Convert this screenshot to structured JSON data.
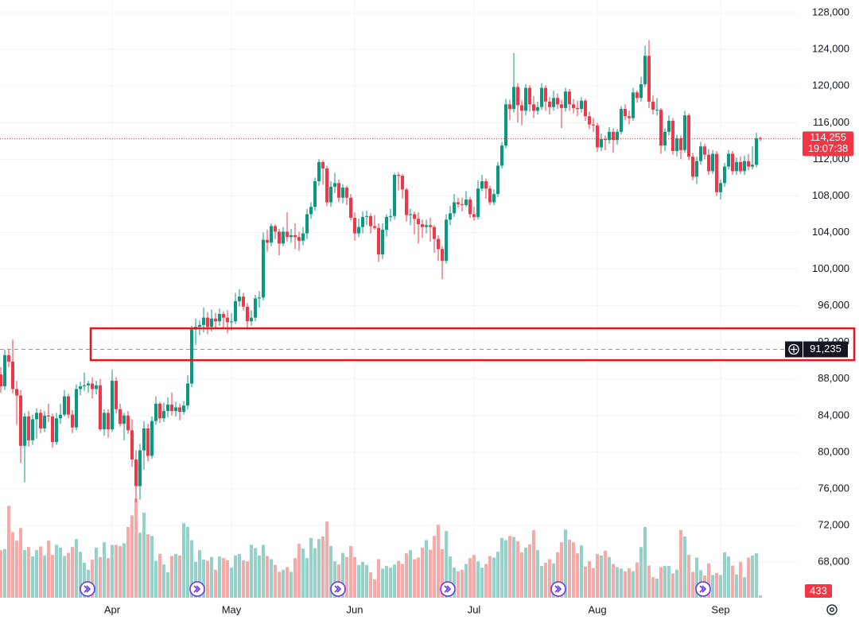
{
  "chart_data": {
    "type": "candlestick",
    "up_color": "#089981",
    "down_color": "#f23645",
    "up_volume_color": "#92d2c8",
    "down_volume_color": "#f7a9a7",
    "ylim": [
      64100,
      129400
    ],
    "yticks": [
      {
        "value": 68000,
        "label": "68,000"
      },
      {
        "value": 72000,
        "label": "72,000"
      },
      {
        "value": 76000,
        "label": "76,000"
      },
      {
        "value": 80000,
        "label": "80,000"
      },
      {
        "value": 84000,
        "label": "84,000"
      },
      {
        "value": 88000,
        "label": "88,000"
      },
      {
        "value": 92000,
        "label": "92,000"
      },
      {
        "value": 96000,
        "label": "96,000"
      },
      {
        "value": 100000,
        "label": "100,000"
      },
      {
        "value": 104000,
        "label": "104,000"
      },
      {
        "value": 108000,
        "label": "108,000"
      },
      {
        "value": 112000,
        "label": "112,000"
      },
      {
        "value": 116000,
        "label": "116,000"
      },
      {
        "value": 120000,
        "label": "120,000"
      },
      {
        "value": 124000,
        "label": "124,000"
      },
      {
        "value": 128000,
        "label": "128,000"
      }
    ],
    "xticks": [
      {
        "value": 28,
        "label": "Apr"
      },
      {
        "value": 58,
        "label": "May"
      },
      {
        "value": 89,
        "label": "Jun"
      },
      {
        "value": 119,
        "label": "Jul"
      },
      {
        "value": 150,
        "label": "Aug"
      },
      {
        "value": 181,
        "label": "Sep"
      }
    ],
    "grid": true,
    "last_price": {
      "value": 114255,
      "label": "114,255"
    },
    "countdown": "19:07:38",
    "crosshair": {
      "value": 91235,
      "label": "91,235"
    },
    "highlight_range": [
      90050,
      93530
    ],
    "candles": [
      [
        88500,
        89300,
        86500,
        87200
      ],
      [
        87200,
        91200,
        86800,
        90600
      ],
      [
        90600,
        91300,
        89300,
        89900
      ],
      [
        89900,
        92300,
        86400,
        86900
      ],
      [
        86900,
        87800,
        83000,
        86200
      ],
      [
        86200,
        86800,
        78800,
        80700
      ],
      [
        80700,
        84300,
        76700,
        83900
      ],
      [
        83900,
        84500,
        80600,
        81300
      ],
      [
        81300,
        84100,
        80800,
        83600
      ],
      [
        83600,
        84800,
        81500,
        84300
      ],
      [
        84300,
        84700,
        82100,
        82600
      ],
      [
        82600,
        84500,
        82200,
        84000
      ],
      [
        84000,
        85300,
        83300,
        83900
      ],
      [
        83900,
        84200,
        80500,
        81100
      ],
      [
        81100,
        84300,
        80800,
        83700
      ],
      [
        83700,
        85300,
        83100,
        84100
      ],
      [
        84100,
        86800,
        83900,
        86100
      ],
      [
        86100,
        86400,
        83700,
        84100
      ],
      [
        84100,
        84600,
        82100,
        82700
      ],
      [
        82700,
        87400,
        82400,
        86900
      ],
      [
        86900,
        87700,
        86200,
        87200
      ],
      [
        87200,
        88700,
        86700,
        87300
      ],
      [
        87300,
        87800,
        86500,
        87500
      ],
      [
        87500,
        88200,
        85900,
        86900
      ],
      [
        86900,
        87800,
        86300,
        87300
      ],
      [
        87300,
        88000,
        82300,
        82500
      ],
      [
        82500,
        84700,
        81800,
        84300
      ],
      [
        84300,
        84700,
        81600,
        82500
      ],
      [
        82500,
        89000,
        82200,
        87800
      ],
      [
        87800,
        88200,
        84200,
        84700
      ],
      [
        84700,
        85300,
        82800,
        83100
      ],
      [
        83100,
        84300,
        81300,
        84000
      ],
      [
        84000,
        84500,
        82000,
        82400
      ],
      [
        82400,
        83600,
        78400,
        79200
      ],
      [
        79200,
        80200,
        74500,
        76300
      ],
      [
        76300,
        80900,
        74800,
        80200
      ],
      [
        80200,
        83400,
        78100,
        82600
      ],
      [
        82600,
        83100,
        79000,
        79600
      ],
      [
        79600,
        83900,
        79300,
        83400
      ],
      [
        83400,
        86100,
        83000,
        85300
      ],
      [
        85300,
        85500,
        83200,
        83700
      ],
      [
        83700,
        85400,
        83300,
        84500
      ],
      [
        84500,
        86000,
        83800,
        85200
      ],
      [
        85200,
        86500,
        84000,
        84500
      ],
      [
        84500,
        85500,
        83900,
        84900
      ],
      [
        84900,
        85300,
        83500,
        84400
      ],
      [
        84400,
        85600,
        84100,
        85100
      ],
      [
        85100,
        88400,
        84700,
        87500
      ],
      [
        87500,
        93800,
        87100,
        93400
      ],
      [
        93400,
        94600,
        91700,
        93700
      ],
      [
        93700,
        94400,
        92800,
        93900
      ],
      [
        93900,
        95800,
        93100,
        94700
      ],
      [
        94700,
        95300,
        92900,
        93700
      ],
      [
        93700,
        95600,
        93200,
        94600
      ],
      [
        94600,
        95200,
        93500,
        94300
      ],
      [
        94300,
        95700,
        93800,
        95100
      ],
      [
        95100,
        95400,
        93500,
        94700
      ],
      [
        94700,
        95500,
        93000,
        94200
      ],
      [
        94200,
        95200,
        93300,
        94300
      ],
      [
        94300,
        97400,
        94000,
        96500
      ],
      [
        96500,
        97800,
        95900,
        97000
      ],
      [
        97000,
        97400,
        95500,
        95900
      ],
      [
        95900,
        96300,
        93400,
        94300
      ],
      [
        94300,
        95500,
        93800,
        94700
      ],
      [
        94700,
        97200,
        94300,
        96800
      ],
      [
        96800,
        97600,
        95800,
        96900
      ],
      [
        96900,
        104000,
        96600,
        103200
      ],
      [
        103200,
        104300,
        101900,
        102900
      ],
      [
        102900,
        105000,
        102500,
        104700
      ],
      [
        104700,
        104900,
        103300,
        104100
      ],
      [
        104100,
        104400,
        101500,
        102800
      ],
      [
        102800,
        104600,
        102500,
        104100
      ],
      [
        104100,
        106200,
        103000,
        103500
      ],
      [
        103500,
        104400,
        102900,
        103700
      ],
      [
        103700,
        105000,
        102200,
        103500
      ],
      [
        103500,
        104100,
        102000,
        103100
      ],
      [
        103100,
        104600,
        102600,
        103900
      ],
      [
        103900,
        106600,
        103300,
        106000
      ],
      [
        106000,
        107300,
        105500,
        106800
      ],
      [
        106800,
        110000,
        106400,
        109600
      ],
      [
        109600,
        112000,
        109100,
        111700
      ],
      [
        111700,
        111900,
        109200,
        111000
      ],
      [
        111000,
        111300,
        106900,
        107300
      ],
      [
        107300,
        109600,
        106800,
        109000
      ],
      [
        109000,
        110500,
        108300,
        109400
      ],
      [
        109400,
        109800,
        107300,
        107800
      ],
      [
        107800,
        109300,
        107200,
        108900
      ],
      [
        108900,
        109100,
        107000,
        107800
      ],
      [
        107800,
        108200,
        105300,
        105600
      ],
      [
        105600,
        106200,
        103100,
        103900
      ],
      [
        103900,
        105500,
        103500,
        104600
      ],
      [
        104600,
        106300,
        103900,
        105700
      ],
      [
        105700,
        106400,
        104800,
        105800
      ],
      [
        105800,
        106100,
        103900,
        104700
      ],
      [
        104700,
        105900,
        104300,
        104500
      ],
      [
        104500,
        105000,
        100800,
        101600
      ],
      [
        101600,
        105000,
        101100,
        104300
      ],
      [
        104300,
        106000,
        103600,
        105700
      ],
      [
        105700,
        106600,
        105200,
        105800
      ],
      [
        105800,
        110500,
        105400,
        110300
      ],
      [
        110300,
        110600,
        108600,
        110200
      ],
      [
        110200,
        110400,
        107700,
        108700
      ],
      [
        108700,
        108900,
        105200,
        105900
      ],
      [
        105900,
        106600,
        104800,
        106000
      ],
      [
        106000,
        106300,
        103800,
        105500
      ],
      [
        105500,
        106200,
        102800,
        104900
      ],
      [
        104900,
        105400,
        103400,
        104600
      ],
      [
        104600,
        105400,
        103900,
        104800
      ],
      [
        104800,
        105600,
        103000,
        104600
      ],
      [
        104600,
        104800,
        101800,
        103300
      ],
      [
        103300,
        103700,
        100900,
        102200
      ],
      [
        102200,
        102500,
        98900,
        100900
      ],
      [
        100900,
        106000,
        100600,
        105400
      ],
      [
        105400,
        106900,
        104800,
        106100
      ],
      [
        106100,
        108200,
        105700,
        107300
      ],
      [
        107300,
        107800,
        106700,
        107100
      ],
      [
        107100,
        107800,
        106300,
        107000
      ],
      [
        107000,
        108500,
        106800,
        107600
      ],
      [
        107600,
        107900,
        105600,
        106000
      ],
      [
        106000,
        106800,
        105300,
        105700
      ],
      [
        105700,
        109700,
        105400,
        108800
      ],
      [
        108800,
        110300,
        108500,
        109600
      ],
      [
        109600,
        109900,
        107700,
        108800
      ],
      [
        108800,
        109100,
        107000,
        107300
      ],
      [
        107300,
        108700,
        107000,
        108200
      ],
      [
        108200,
        111700,
        107900,
        111300
      ],
      [
        111300,
        113900,
        111000,
        113500
      ],
      [
        113500,
        118600,
        113200,
        118000
      ],
      [
        118000,
        118500,
        116300,
        117500
      ],
      [
        117500,
        123600,
        117100,
        119900
      ],
      [
        119900,
        120300,
        116000,
        117900
      ],
      [
        117900,
        118400,
        115700,
        117300
      ],
      [
        117300,
        120200,
        116800,
        119800
      ],
      [
        119800,
        120100,
        117200,
        118000
      ],
      [
        118000,
        118900,
        116500,
        117300
      ],
      [
        117300,
        118300,
        116900,
        117700
      ],
      [
        117700,
        120300,
        117400,
        119800
      ],
      [
        119800,
        120100,
        117300,
        118300
      ],
      [
        118300,
        118800,
        116900,
        117700
      ],
      [
        117700,
        119500,
        117300,
        118700
      ],
      [
        118700,
        119200,
        117500,
        118000
      ],
      [
        118000,
        118500,
        115400,
        117600
      ],
      [
        117600,
        119800,
        117200,
        119400
      ],
      [
        119400,
        119700,
        117300,
        118000
      ],
      [
        118000,
        118600,
        117000,
        117600
      ],
      [
        117600,
        118400,
        116700,
        117500
      ],
      [
        117500,
        118800,
        117100,
        118400
      ],
      [
        118400,
        118600,
        116200,
        116700
      ],
      [
        116700,
        117200,
        115300,
        115800
      ],
      [
        115800,
        116500,
        115000,
        115700
      ],
      [
        115700,
        116000,
        112800,
        113300
      ],
      [
        113300,
        114800,
        112900,
        114200
      ],
      [
        114200,
        114600,
        113000,
        114100
      ],
      [
        114100,
        115500,
        113700,
        115000
      ],
      [
        115000,
        115400,
        112700,
        114100
      ],
      [
        114100,
        115300,
        113600,
        115000
      ],
      [
        115000,
        117800,
        114700,
        117500
      ],
      [
        117500,
        118000,
        116300,
        116700
      ],
      [
        116700,
        117300,
        115800,
        116500
      ],
      [
        116500,
        119800,
        116200,
        119300
      ],
      [
        119300,
        119500,
        118200,
        118700
      ],
      [
        118700,
        121000,
        118300,
        120200
      ],
      [
        120200,
        124400,
        119900,
        123300
      ],
      [
        123300,
        125000,
        117600,
        118300
      ],
      [
        118300,
        119000,
        116900,
        117400
      ],
      [
        117400,
        118700,
        116800,
        117400
      ],
      [
        117400,
        117600,
        112600,
        113500
      ],
      [
        113500,
        115400,
        112900,
        115000
      ],
      [
        115000,
        116800,
        114600,
        116200
      ],
      [
        116200,
        116500,
        112500,
        112900
      ],
      [
        112900,
        114700,
        112300,
        114300
      ],
      [
        114300,
        114600,
        112000,
        113000
      ],
      [
        113000,
        117300,
        112700,
        116800
      ],
      [
        116800,
        117000,
        111900,
        112300
      ],
      [
        112300,
        112700,
        109700,
        110100
      ],
      [
        110100,
        112300,
        109300,
        111800
      ],
      [
        111800,
        113900,
        111400,
        113400
      ],
      [
        113400,
        113700,
        112000,
        112500
      ],
      [
        112500,
        113100,
        110300,
        110700
      ],
      [
        110700,
        113000,
        110400,
        112600
      ],
      [
        112600,
        112900,
        108000,
        108400
      ],
      [
        108400,
        109800,
        107600,
        109400
      ],
      [
        109400,
        111600,
        109000,
        111200
      ],
      [
        111200,
        113000,
        110900,
        112600
      ],
      [
        112600,
        112900,
        110300,
        110700
      ],
      [
        110700,
        112200,
        110300,
        111700
      ],
      [
        111700,
        112300,
        110400,
        110700
      ],
      [
        110700,
        112400,
        110300,
        111800
      ],
      [
        111800,
        112600,
        110800,
        111200
      ],
      [
        111200,
        113400,
        110900,
        111400
      ],
      [
        111400,
        114900,
        111100,
        114300
      ],
      [
        114300,
        114500,
        114000,
        114255
      ]
    ],
    "volumes": [
      9000,
      9200,
      17400,
      12400,
      10800,
      13200,
      9000,
      9600,
      7800,
      9000,
      9700,
      8000,
      10800,
      8100,
      10000,
      9500,
      7900,
      8500,
      9600,
      11100,
      8700,
      6600,
      5300,
      7200,
      9500,
      7700,
      10500,
      7500,
      10000,
      10000,
      9800,
      10300,
      13400,
      15600,
      18800,
      12300,
      16100,
      12000,
      11700,
      7000,
      8300,
      6300,
      4800,
      7900,
      8300,
      8000,
      14100,
      13400,
      10900,
      6800,
      9000,
      7200,
      7000,
      7700,
      5300,
      7800,
      7500,
      7100,
      5700,
      8000,
      8300,
      7100,
      6900,
      10000,
      9400,
      8000,
      10000,
      7900,
      7300,
      6200,
      4900,
      5300,
      5800,
      4900,
      7500,
      10200,
      9300,
      7500,
      11300,
      9400,
      11100,
      11600,
      14400,
      9800,
      6900,
      6300,
      8500,
      7700,
      9800,
      7700,
      6200,
      6800,
      6200,
      4800,
      3500,
      7300,
      5500,
      6000,
      5700,
      6300,
      7000,
      6400,
      8400,
      9000,
      7300,
      7600,
      9500,
      10900,
      9100,
      11700,
      13800,
      9200,
      12600,
      7800,
      5700,
      5000,
      5300,
      6400,
      7500,
      8100,
      6900,
      5700,
      6400,
      7900,
      7600,
      8700,
      11300,
      10900,
      11700,
      11500,
      10700,
      8600,
      9500,
      10100,
      12800,
      9000,
      6000,
      6600,
      7300,
      6500,
      8600,
      10500,
      12900,
      11000,
      10500,
      8400,
      9900,
      5900,
      6900,
      5600,
      8300,
      8000,
      8900,
      7700,
      6400,
      5800,
      5500,
      5000,
      5600,
      5000,
      6700,
      9600,
      13400,
      6100,
      3900,
      3600,
      5800,
      6000,
      6000,
      4600,
      5300,
      12800,
      11600,
      8100,
      4900,
      7600,
      5200,
      4200,
      6500,
      4300,
      4700,
      4300,
      8600,
      7800,
      6100,
      4400,
      6800,
      3900,
      7600,
      8000,
      8400,
      433
    ]
  }
}
